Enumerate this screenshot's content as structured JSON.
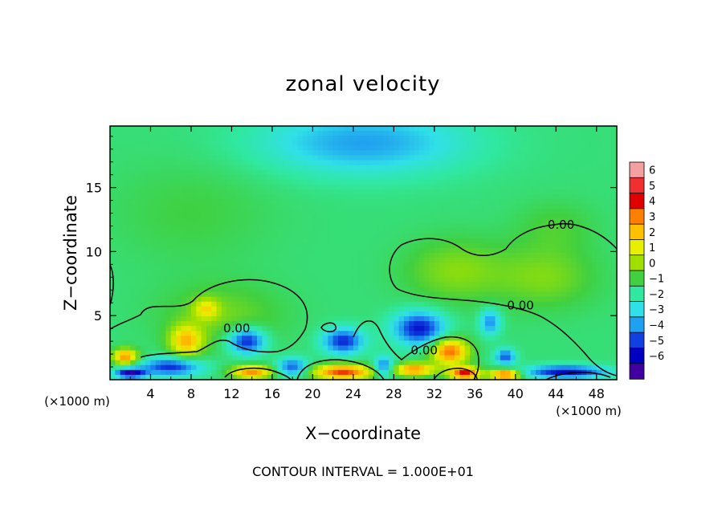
{
  "chart_data": {
    "type": "heatmap",
    "title": "zonal velocity",
    "xlabel": "X−coordinate",
    "ylabel": "Z−coordinate",
    "x_unit_left": "(×1000 m)",
    "x_unit_right": "(×1000 m)",
    "xlim": [
      0,
      50
    ],
    "ylim": [
      0,
      19.8
    ],
    "x_ticks": [
      4,
      8,
      12,
      16,
      20,
      24,
      28,
      32,
      36,
      40,
      44,
      48
    ],
    "y_ticks": [
      5,
      10,
      15
    ],
    "footer": "CONTOUR INTERVAL = 1.000E+01",
    "contour_label": "0.00",
    "contour_labels": [
      {
        "text": "0.00",
        "x": 44.5,
        "y": 12.1
      },
      {
        "text": "0.00",
        "x": 40.5,
        "y": 5.8
      },
      {
        "text": "0.00",
        "x": 12.5,
        "y": 4.0
      },
      {
        "text": "0.00",
        "x": 31.0,
        "y": 2.3
      }
    ],
    "colorbar": {
      "min": -6,
      "max": 6,
      "labels": [
        "6",
        "5",
        "4",
        "3",
        "2",
        "1",
        "0",
        "−1",
        "−2",
        "−3",
        "−4",
        "−5",
        "−6"
      ],
      "colors": [
        "#f4a0a0",
        "#f03030",
        "#e00000",
        "#ff8000",
        "#ffc000",
        "#e8f000",
        "#a0e000",
        "#40d040",
        "#30e8a0",
        "#30e0e8",
        "#20a0f0",
        "#1040e0",
        "#0000c0",
        "#4000a0"
      ]
    },
    "field": {
      "background": -1,
      "blobs": [
        {
          "x": 25,
          "y": 18.5,
          "rx": 10,
          "ry": 2.5,
          "v": -2.2
        },
        {
          "x": 8,
          "y": 13,
          "rx": 8,
          "ry": 4,
          "v": 0.5
        },
        {
          "x": 34,
          "y": 8.5,
          "rx": 5,
          "ry": 2.5,
          "v": 1.2
        },
        {
          "x": 43,
          "y": 8,
          "rx": 5,
          "ry": 2.5,
          "v": 1.1
        },
        {
          "x": 44,
          "y": 12,
          "rx": 4,
          "ry": 2,
          "v": 0.6
        },
        {
          "x": 11,
          "y": 5,
          "rx": 6,
          "ry": 2.5,
          "v": 1.0
        },
        {
          "x": 7.5,
          "y": 3,
          "rx": 1.6,
          "ry": 1.2,
          "v": 3.2
        },
        {
          "x": 9.5,
          "y": 5.5,
          "rx": 1.2,
          "ry": 0.8,
          "v": 2.0
        },
        {
          "x": 1.5,
          "y": 1.8,
          "rx": 1.2,
          "ry": 0.6,
          "v": 4.0
        },
        {
          "x": 13.5,
          "y": 3,
          "rx": 1.8,
          "ry": 1,
          "v": -3.8
        },
        {
          "x": 6,
          "y": 1,
          "rx": 3,
          "ry": 0.7,
          "v": -3.5
        },
        {
          "x": 23,
          "y": 3,
          "rx": 2,
          "ry": 1,
          "v": -3.5
        },
        {
          "x": 30.5,
          "y": 4,
          "rx": 2.5,
          "ry": 1.3,
          "v": -3.8
        },
        {
          "x": 33.5,
          "y": 2.2,
          "rx": 1.8,
          "ry": 1,
          "v": 4.5
        },
        {
          "x": 37.5,
          "y": 4.5,
          "rx": 1,
          "ry": 1,
          "v": -2.5
        },
        {
          "x": 39,
          "y": 1.8,
          "rx": 1,
          "ry": 0.6,
          "v": -3.0
        },
        {
          "x": 23,
          "y": 0.6,
          "rx": 3,
          "ry": 0.6,
          "v": 4.8
        },
        {
          "x": 14,
          "y": 0.6,
          "rx": 2,
          "ry": 0.5,
          "v": 4.0
        },
        {
          "x": 30,
          "y": 0.8,
          "rx": 2,
          "ry": 0.5,
          "v": 4.0
        },
        {
          "x": 35,
          "y": 0.5,
          "rx": 1.5,
          "ry": 0.5,
          "v": 5.2
        },
        {
          "x": 39,
          "y": 0.4,
          "rx": 1.5,
          "ry": 0.4,
          "v": 5.0
        },
        {
          "x": 45,
          "y": 0.6,
          "rx": 4,
          "ry": 0.5,
          "v": -4.0
        },
        {
          "x": 2,
          "y": 0.5,
          "rx": 1.5,
          "ry": 0.4,
          "v": -4.5
        },
        {
          "x": 18,
          "y": 1,
          "rx": 1.5,
          "ry": 0.7,
          "v": -3.0
        },
        {
          "x": 27,
          "y": 1,
          "rx": 1,
          "ry": 0.8,
          "v": -3.0
        }
      ]
    }
  }
}
